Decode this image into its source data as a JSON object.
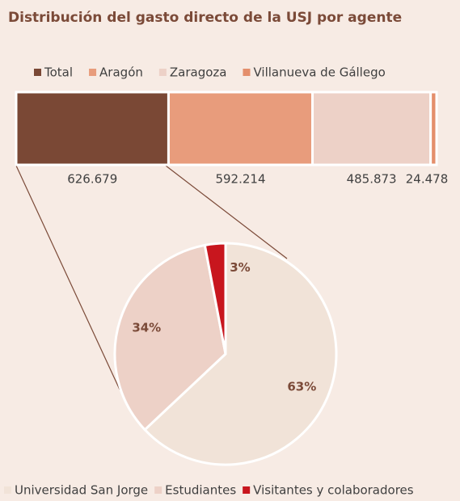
{
  "chart_data": [
    {
      "type": "bar",
      "orientation": "horizontal",
      "stacked": true,
      "title": "Distribución del gasto directo de la USJ por agente",
      "series": [
        {
          "name": "Total",
          "color": "#7a4835",
          "values": [
            626679
          ],
          "value_labels": [
            "626.679"
          ]
        },
        {
          "name": "Aragón",
          "color": "#e89c7c",
          "values": [
            592214
          ],
          "value_labels": [
            "592.214"
          ]
        },
        {
          "name": "Zaragoza",
          "color": "#edd1c7",
          "values": [
            485873
          ],
          "value_labels": [
            "485.873"
          ]
        },
        {
          "name": "Villanueva de Gállego",
          "color": "#e48f6c",
          "values": [
            24478
          ],
          "value_labels": [
            "24.478"
          ]
        }
      ]
    },
    {
      "type": "pie",
      "categories": [
        "Universidad San Jorge",
        "Estudiantes",
        "Visitantes y colaboradores"
      ],
      "values": [
        63,
        34,
        3
      ],
      "value_labels": [
        "63%",
        "34%",
        "3%"
      ],
      "colors": [
        "#f1e3d8",
        "#edd1c7",
        "#c8161e"
      ]
    }
  ]
}
